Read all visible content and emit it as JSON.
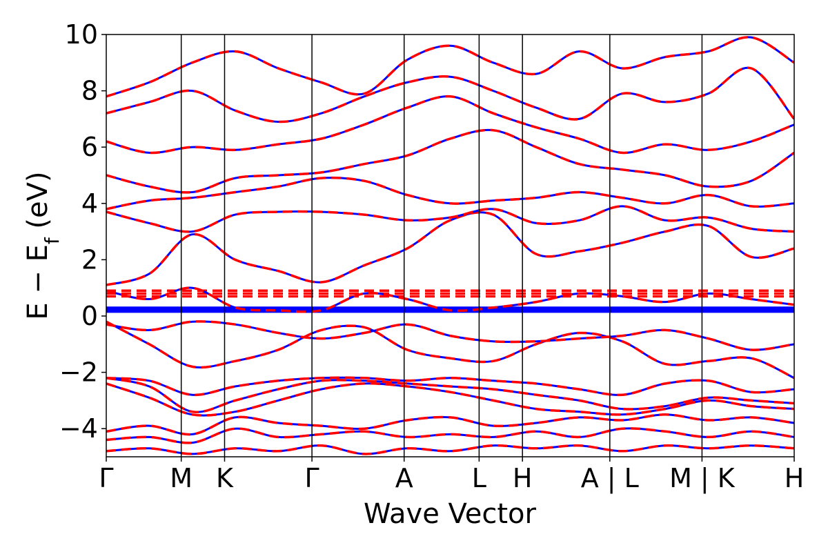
{
  "chart_data": {
    "type": "line",
    "xlabel": "Wave Vector",
    "ylabel": "E − E",
    "ylabel_subscript": "f",
    "ylabel_unit": " (eV)",
    "ylim": [
      -5,
      10
    ],
    "y_ticks": [
      {
        "value": 10,
        "label": "10"
      },
      {
        "value": 8,
        "label": "8"
      },
      {
        "value": 6,
        "label": "6"
      },
      {
        "value": 4,
        "label": "4"
      },
      {
        "value": 2,
        "label": "2"
      },
      {
        "value": 0,
        "label": "0"
      },
      {
        "value": -2,
        "label": "−2"
      },
      {
        "value": -4,
        "label": "−4"
      }
    ],
    "xlim": [
      0,
      1
    ],
    "k_points": [
      {
        "x": 0.0,
        "label": "Γ"
      },
      {
        "x": 0.109,
        "label": "M"
      },
      {
        "x": 0.172,
        "label": "K"
      },
      {
        "x": 0.299,
        "label": "Γ"
      },
      {
        "x": 0.433,
        "label": "A"
      },
      {
        "x": 0.542,
        "label": "L"
      },
      {
        "x": 0.605,
        "label": "H"
      },
      {
        "x": 0.732,
        "label": "A | L"
      },
      {
        "x": 0.866,
        "label": "M | K"
      },
      {
        "x": 1.0,
        "label": "H"
      }
    ],
    "series": [
      {
        "style": "dashed",
        "color": "#ff0000"
      },
      {
        "style": "solid",
        "color": "#0000ff"
      }
    ],
    "bands": [
      {
        "y": [
          -4.8,
          -4.7,
          -4.9,
          -4.7,
          -4.8,
          -4.6,
          -4.9,
          -4.7,
          -4.8,
          -4.6,
          -4.7,
          -4.6,
          -4.8,
          -4.6,
          -4.7,
          -4.6,
          -4.7
        ]
      },
      {
        "y": [
          -4.4,
          -4.3,
          -4.5,
          -4.0,
          -4.3,
          -4.2,
          -4.1,
          -4.3,
          -4.2,
          -4.3,
          -4.1,
          -4.3,
          -4.0,
          -4.1,
          -4.3,
          -4.1,
          -4.3
        ]
      },
      {
        "y": [
          -4.1,
          -3.9,
          -4.2,
          -3.6,
          -3.8,
          -3.9,
          -4.0,
          -3.7,
          -3.6,
          -3.9,
          -3.8,
          -3.6,
          -3.7,
          -3.5,
          -3.7,
          -3.6,
          -3.8
        ]
      },
      {
        "y": [
          -2.4,
          -2.9,
          -3.5,
          -3.4,
          -3.0,
          -2.6,
          -2.4,
          -2.5,
          -2.7,
          -3.0,
          -3.3,
          -3.4,
          -3.5,
          -3.3,
          -3.0,
          -3.2,
          -3.3
        ]
      },
      {
        "y": [
          -2.2,
          -2.5,
          -3.4,
          -3.0,
          -2.6,
          -2.3,
          -2.3,
          -2.4,
          -2.5,
          -2.6,
          -2.8,
          -3.0,
          -3.3,
          -3.2,
          -2.9,
          -3.0,
          -3.1
        ]
      },
      {
        "y": [
          -2.2,
          -2.3,
          -2.8,
          -2.5,
          -2.3,
          -2.2,
          -2.2,
          -2.3,
          -2.2,
          -2.3,
          -2.4,
          -2.6,
          -2.8,
          -2.4,
          -2.3,
          -2.7,
          -2.6
        ]
      },
      {
        "y": [
          -0.2,
          -1.0,
          -1.8,
          -1.6,
          -1.2,
          -0.5,
          -0.4,
          -1.2,
          -1.5,
          -1.6,
          -1.0,
          -0.6,
          -0.9,
          -1.7,
          -1.6,
          -1.5,
          -2.2
        ]
      },
      {
        "y": [
          -0.3,
          -0.5,
          -0.2,
          -0.3,
          -0.6,
          -0.8,
          -0.6,
          -0.3,
          -0.7,
          -0.9,
          -0.9,
          -0.8,
          -0.7,
          -0.5,
          -0.8,
          -1.2,
          -1.0
        ]
      },
      {
        "y": [
          0.9,
          0.6,
          1.0,
          0.3,
          0.2,
          0.2,
          0.8,
          0.6,
          0.2,
          0.3,
          0.5,
          0.8,
          0.7,
          0.5,
          0.8,
          0.6,
          0.4
        ]
      },
      {
        "y": [
          1.1,
          1.5,
          2.9,
          2.0,
          1.6,
          1.2,
          1.8,
          2.4,
          3.4,
          3.6,
          2.2,
          2.3,
          2.6,
          3.0,
          3.2,
          2.1,
          2.4
        ]
      },
      {
        "y": [
          3.7,
          3.3,
          3.0,
          3.6,
          3.7,
          3.7,
          3.6,
          3.4,
          3.5,
          3.8,
          3.3,
          3.4,
          3.9,
          3.4,
          3.5,
          3.1,
          3.0
        ]
      },
      {
        "y": [
          3.8,
          4.1,
          4.2,
          4.4,
          4.6,
          4.9,
          4.8,
          4.3,
          4.0,
          4.1,
          4.2,
          4.4,
          4.2,
          4.0,
          4.3,
          3.9,
          4.0
        ]
      },
      {
        "y": [
          5.0,
          4.6,
          4.4,
          4.9,
          5.0,
          5.1,
          5.4,
          5.7,
          6.3,
          6.6,
          6.0,
          5.4,
          5.2,
          5.0,
          4.6,
          4.8,
          5.8
        ]
      },
      {
        "y": [
          6.2,
          5.8,
          6.0,
          5.9,
          6.1,
          6.3,
          6.8,
          7.4,
          7.8,
          7.2,
          6.7,
          6.3,
          5.8,
          6.1,
          5.9,
          6.2,
          6.8
        ]
      },
      {
        "y": [
          7.2,
          7.6,
          8.0,
          7.3,
          6.9,
          7.2,
          7.8,
          8.3,
          8.5,
          8.0,
          7.4,
          7.0,
          7.9,
          7.6,
          7.9,
          8.8,
          7.0
        ]
      },
      {
        "y": [
          7.8,
          8.3,
          9.0,
          9.4,
          8.8,
          8.3,
          7.9,
          9.1,
          9.6,
          9.0,
          8.6,
          9.4,
          8.8,
          9.2,
          9.4,
          9.9,
          9.0
        ]
      }
    ],
    "flat_bands": {
      "blue": [
        0.15,
        0.2,
        0.25,
        0.3
      ],
      "red": [
        0.7,
        0.8,
        0.9
      ]
    }
  }
}
